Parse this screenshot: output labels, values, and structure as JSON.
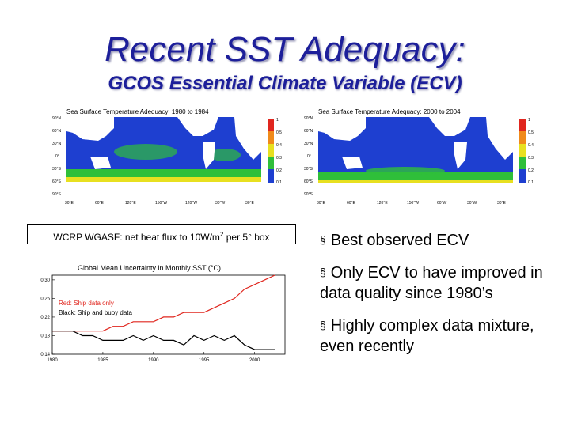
{
  "slide": {
    "title": "Recent SST Adequacy:",
    "subtitle": "GCOS Essential Climate Variable (ECV)"
  },
  "maps": [
    {
      "title": "Sea Surface Temperature Adequacy: 1980 to 1984",
      "lat_labels": [
        "90°N",
        "60°N",
        "30°N",
        "0°",
        "30°S",
        "60°S",
        "90°S"
      ],
      "lon_labels": [
        "30°E",
        "60°E",
        "120°E",
        "150°W",
        "120°W",
        "30°W",
        "30°E"
      ],
      "scale_labels": [
        "1",
        "0.5",
        "0.4",
        "0.3",
        "0.2",
        "0.1"
      ]
    },
    {
      "title": "Sea Surface Temperature Adequacy: 2000 to 2004",
      "lat_labels": [
        "90°N",
        "60°N",
        "30°N",
        "0°",
        "30°S",
        "60°S",
        "90°S"
      ],
      "lon_labels": [
        "30°E",
        "60°E",
        "120°E",
        "150°W",
        "60°W",
        "30°W",
        "30°E"
      ],
      "scale_labels": [
        "1",
        "0.5",
        "0.4",
        "0.3",
        "0.2",
        "0.1"
      ]
    }
  ],
  "caption": {
    "prefix": "WCRP WGASF: net heat flux to 10W/m",
    "superscript": "2",
    "suffix": " per 5° box"
  },
  "chart_data": {
    "type": "line",
    "title": "Global Mean Uncertainty in Monthly SST (°C)",
    "xlabel": "",
    "ylabel": "",
    "xlim": [
      1980,
      2003
    ],
    "ylim": [
      0.14,
      0.31
    ],
    "x_ticks": [
      "1980",
      "1985",
      "1990",
      "1995",
      "2000"
    ],
    "y_ticks": [
      "0.14",
      "0.18",
      "0.22",
      "0.26",
      "0.30"
    ],
    "legend": {
      "placement": "left",
      "entries": [
        "Red: Ship data only",
        "Black: Ship and buoy data"
      ]
    },
    "series": [
      {
        "name": "Red: Ship data only",
        "color": "#e0261e",
        "x": [
          1980,
          1981,
          1982,
          1983,
          1984,
          1985,
          1986,
          1987,
          1988,
          1989,
          1990,
          1991,
          1992,
          1993,
          1994,
          1995,
          1996,
          1997,
          1998,
          1999,
          2000,
          2001,
          2002
        ],
        "values": [
          0.19,
          0.19,
          0.19,
          0.19,
          0.19,
          0.19,
          0.2,
          0.2,
          0.21,
          0.21,
          0.21,
          0.22,
          0.22,
          0.23,
          0.23,
          0.23,
          0.24,
          0.25,
          0.26,
          0.28,
          0.29,
          0.3,
          0.31
        ]
      },
      {
        "name": "Black: Ship and buoy data",
        "color": "#000000",
        "x": [
          1980,
          1981,
          1982,
          1983,
          1984,
          1985,
          1986,
          1987,
          1988,
          1989,
          1990,
          1991,
          1992,
          1993,
          1994,
          1995,
          1996,
          1997,
          1998,
          1999,
          2000,
          2001,
          2002
        ],
        "values": [
          0.19,
          0.19,
          0.19,
          0.18,
          0.18,
          0.17,
          0.17,
          0.17,
          0.18,
          0.17,
          0.18,
          0.17,
          0.17,
          0.16,
          0.18,
          0.17,
          0.18,
          0.17,
          0.18,
          0.16,
          0.15,
          0.15,
          0.15
        ]
      }
    ]
  },
  "bullets": [
    {
      "mark": "§",
      "text": "Best observed ECV"
    },
    {
      "mark": "§",
      "text": "Only ECV to have improved in data quality since 1980’s"
    },
    {
      "mark": "§",
      "text": "Highly complex data mixture, even recently"
    }
  ]
}
